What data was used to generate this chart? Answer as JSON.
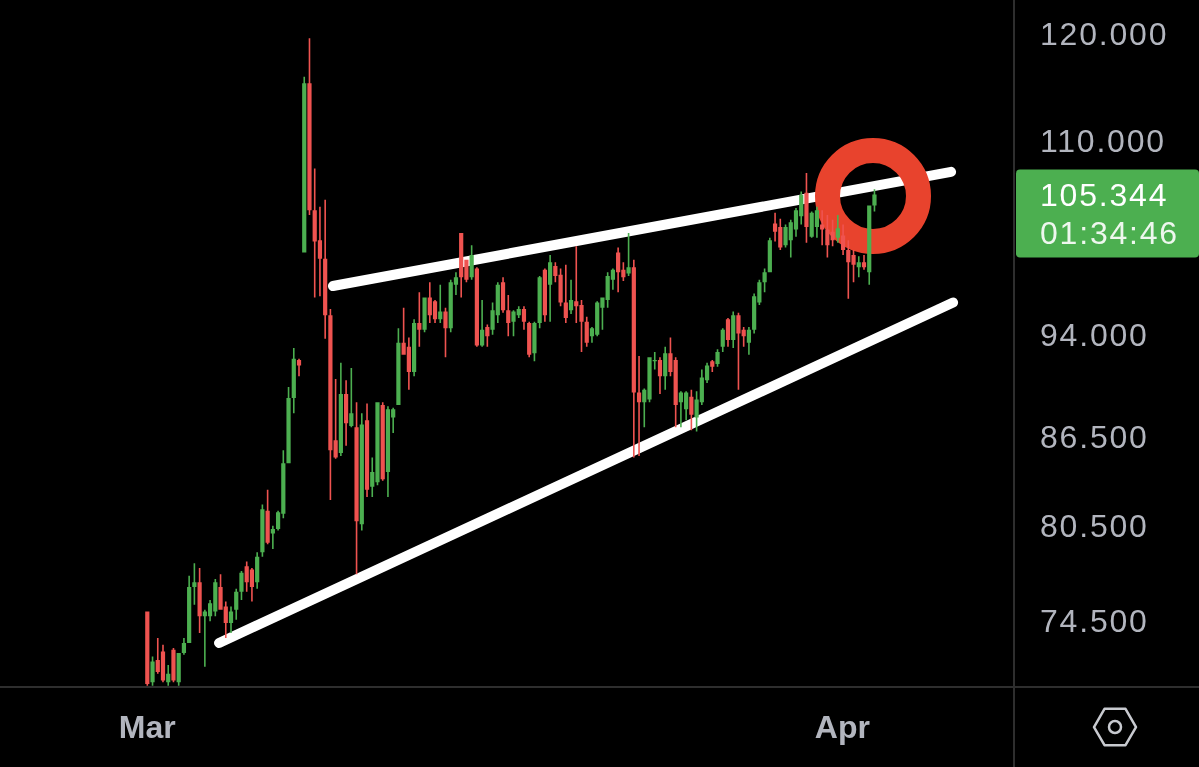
{
  "chart_data": {
    "type": "candlestick",
    "x": [
      "--03-01T00:00",
      "--03-01T05:36",
      "--03-01T11:12",
      "--03-01T16:48",
      "--03-01T22:24",
      "--03-02T04:00",
      "--03-02T09:36",
      "--03-02T15:12",
      "--03-02T20:48",
      "--03-03T02:24",
      "--03-03T08:00",
      "--03-03T13:36",
      "--03-03T19:12",
      "--03-04T00:48",
      "--03-04T06:24",
      "--03-04T12:00",
      "--03-04T17:36",
      "--03-04T23:12",
      "--03-05T04:48",
      "--03-05T10:24",
      "--03-05T16:00",
      "--03-05T21:36",
      "--03-06T03:12",
      "--03-06T08:48",
      "--03-06T14:24",
      "--03-06T20:00",
      "--03-07T01:36",
      "--03-07T07:12",
      "--03-07T12:48",
      "--03-07T18:24",
      "--03-08T00:00",
      "--03-08T05:36",
      "--03-08T11:12",
      "--03-08T16:48",
      "--03-08T22:24",
      "--03-09T04:00",
      "--03-09T09:36",
      "--03-09T15:12",
      "--03-09T20:48",
      "--03-10T02:24",
      "--03-10T08:00",
      "--03-10T13:36",
      "--03-10T19:12",
      "--03-11T00:48",
      "--03-11T06:24",
      "--03-11T12:00",
      "--03-11T17:36",
      "--03-11T23:12",
      "--03-12T04:48",
      "--03-12T10:24",
      "--03-12T16:00",
      "--03-12T21:36",
      "--03-13T03:12",
      "--03-13T08:48",
      "--03-13T14:24",
      "--03-13T20:00",
      "--03-14T01:36",
      "--03-14T07:12",
      "--03-14T12:48",
      "--03-14T18:24",
      "--03-15T00:00",
      "--03-15T05:36",
      "--03-15T11:12",
      "--03-15T16:48",
      "--03-15T22:24",
      "--03-16T04:00",
      "--03-16T09:36",
      "--03-16T15:12",
      "--03-16T20:48",
      "--03-17T02:24",
      "--03-17T08:00",
      "--03-17T13:36",
      "--03-17T19:12",
      "--03-18T00:48",
      "--03-18T06:24",
      "--03-18T12:00",
      "--03-18T17:36",
      "--03-18T23:12",
      "--03-19T04:48",
      "--03-19T10:24",
      "--03-19T16:00",
      "--03-19T21:36",
      "--03-20T03:12",
      "--03-20T08:48",
      "--03-20T14:24",
      "--03-20T20:00",
      "--03-21T01:36",
      "--03-21T07:12",
      "--03-21T12:48",
      "--03-21T18:24",
      "--03-22T00:00",
      "--03-22T05:36",
      "--03-22T11:12",
      "--03-22T16:48",
      "--03-22T22:24",
      "--03-23T04:00",
      "--03-23T09:36",
      "--03-23T15:12",
      "--03-23T20:48",
      "--03-24T02:24",
      "--03-24T08:00",
      "--03-24T13:36",
      "--03-24T19:12",
      "--03-25T00:48",
      "--03-25T06:24",
      "--03-25T12:00",
      "--03-25T17:36",
      "--03-25T23:12",
      "--03-26T04:48",
      "--03-26T10:24",
      "--03-26T16:00",
      "--03-26T21:36",
      "--03-27T03:12",
      "--03-27T08:48",
      "--03-27T14:24",
      "--03-27T20:00",
      "--03-28T01:36",
      "--03-28T07:12",
      "--03-28T12:48",
      "--03-28T18:24",
      "--03-29T00:00",
      "--03-29T05:36",
      "--03-29T11:12",
      "--03-29T16:48",
      "--03-29T22:24",
      "--03-30T04:00",
      "--03-30T09:36",
      "--03-30T15:12",
      "--03-30T20:48",
      "--03-31T02:24",
      "--03-31T08:00",
      "--03-31T13:36",
      "--03-31T19:12",
      "--04-01T00:48",
      "--04-01T06:24",
      "--04-01T12:00",
      "--04-01T17:36",
      "--04-01T23:12",
      "--04-02T04:48",
      "--04-02T10:24"
    ],
    "ohlc": [
      [
        75.1,
        75.1,
        70.7,
        70.8
      ],
      [
        70.9,
        72.4,
        70.7,
        72.1
      ],
      [
        72.2,
        73.5,
        71.4,
        71.5
      ],
      [
        72.7,
        73.1,
        70.9,
        71.0
      ],
      [
        70.9,
        71.9,
        70.7,
        71.4
      ],
      [
        72.8,
        72.9,
        70.9,
        71.0
      ],
      [
        70.9,
        72.6,
        70.7,
        72.6
      ],
      [
        72.6,
        73.5,
        72.5,
        73.2
      ],
      [
        73.2,
        77.3,
        73.2,
        76.6
      ],
      [
        76.6,
        78.1,
        75.5,
        76.9
      ],
      [
        76.9,
        77.8,
        73.8,
        74.8
      ],
      [
        74.8,
        75.2,
        71.8,
        75.1
      ],
      [
        74.8,
        75.8,
        74.5,
        75.6
      ],
      [
        75.1,
        77.1,
        74.8,
        76.9
      ],
      [
        76.6,
        77.4,
        75.2,
        75.2
      ],
      [
        75.4,
        75.7,
        73.5,
        74.4
      ],
      [
        74.4,
        75.4,
        73.8,
        75.1
      ],
      [
        75.2,
        76.5,
        74.6,
        76.3
      ],
      [
        76.3,
        77.6,
        75.8,
        77.5
      ],
      [
        77.9,
        78.2,
        76.3,
        76.9
      ],
      [
        77.7,
        77.8,
        75.7,
        76.6
      ],
      [
        76.9,
        78.8,
        76.5,
        78.5
      ],
      [
        78.8,
        81.9,
        78.5,
        81.6
      ],
      [
        81.5,
        82.9,
        79.3,
        79.4
      ],
      [
        80.0,
        80.5,
        79.0,
        80.3
      ],
      [
        80.3,
        81.5,
        80.2,
        81.4
      ],
      [
        81.3,
        85.6,
        81.0,
        84.7
      ],
      [
        84.7,
        90.1,
        84.7,
        89.3
      ],
      [
        89.3,
        93.0,
        88.2,
        92.2
      ],
      [
        92.1,
        92.2,
        90.9,
        91.7
      ],
      [
        100.5,
        115.9,
        100.5,
        115.3
      ],
      [
        115.3,
        119.6,
        103.6,
        104.0
      ],
      [
        104.0,
        107.6,
        96.9,
        101.4
      ],
      [
        101.5,
        104.3,
        97.0,
        100.0
      ],
      [
        100.0,
        104.9,
        93.7,
        95.5
      ],
      [
        95.5,
        96.0,
        82.2,
        85.6
      ],
      [
        86.3,
        90.7,
        85.0,
        85.1
      ],
      [
        85.4,
        91.9,
        85.2,
        89.6
      ],
      [
        89.6,
        90.6,
        85.9,
        87.5
      ],
      [
        87.3,
        91.5,
        87.2,
        88.2
      ],
      [
        87.2,
        89.0,
        77.4,
        80.8
      ],
      [
        80.6,
        88.2,
        80.2,
        87.4
      ],
      [
        87.7,
        88.9,
        82.4,
        82.9
      ],
      [
        83.1,
        85.1,
        82.4,
        84.1
      ],
      [
        83.4,
        89.0,
        83.2,
        89.0
      ],
      [
        88.8,
        89.0,
        83.5,
        83.6
      ],
      [
        84.1,
        88.7,
        82.4,
        88.5
      ],
      [
        87.9,
        88.6,
        86.8,
        88.5
      ],
      [
        88.8,
        94.5,
        88.8,
        93.4
      ],
      [
        93.4,
        96.1,
        92.5,
        92.5
      ],
      [
        93.1,
        93.8,
        89.9,
        91.2
      ],
      [
        91.2,
        95.2,
        90.9,
        94.9
      ],
      [
        94.9,
        97.3,
        93.1,
        94.4
      ],
      [
        94.4,
        96.9,
        94.2,
        96.9
      ],
      [
        96.9,
        98.1,
        94.9,
        95.5
      ],
      [
        96.6,
        96.7,
        94.9,
        95.2
      ],
      [
        95.2,
        97.9,
        94.9,
        95.8
      ],
      [
        95.8,
        96.1,
        92.3,
        94.5
      ],
      [
        94.5,
        98.3,
        94.2,
        98.1
      ],
      [
        97.9,
        98.9,
        97.1,
        98.5
      ],
      [
        102.1,
        102.1,
        96.9,
        98.5
      ],
      [
        99.9,
        99.9,
        98.1,
        98.3
      ],
      [
        98.5,
        101.1,
        98.3,
        100.3
      ],
      [
        99.2,
        99.3,
        93.1,
        93.2
      ],
      [
        93.2,
        96.7,
        93.1,
        94.4
      ],
      [
        94.6,
        94.8,
        93.1,
        93.9
      ],
      [
        94.4,
        96.5,
        94.0,
        95.9
      ],
      [
        95.5,
        98.1,
        94.9,
        97.9
      ],
      [
        98.1,
        98.5,
        95.7,
        95.9
      ],
      [
        95.9,
        97.1,
        93.9,
        94.9
      ],
      [
        95.0,
        95.9,
        93.9,
        95.8
      ],
      [
        95.5,
        96.2,
        95.3,
        96.0
      ],
      [
        96.0,
        96.2,
        94.4,
        95.0
      ],
      [
        94.9,
        95.0,
        92.3,
        92.5
      ],
      [
        92.6,
        95.0,
        92.0,
        94.9
      ],
      [
        94.9,
        98.6,
        94.5,
        98.5
      ],
      [
        99.1,
        99.2,
        95.0,
        95.5
      ],
      [
        97.9,
        100.3,
        95.0,
        99.7
      ],
      [
        99.4,
        99.7,
        98.1,
        98.6
      ],
      [
        98.7,
        99.2,
        96.2,
        96.5
      ],
      [
        96.5,
        99.5,
        94.9,
        95.3
      ],
      [
        95.9,
        98.3,
        95.6,
        96.7
      ],
      [
        96.6,
        101.0,
        94.9,
        96.2
      ],
      [
        96.3,
        96.7,
        92.7,
        95.0
      ],
      [
        95.0,
        95.4,
        93.1,
        93.4
      ],
      [
        93.9,
        94.6,
        93.4,
        94.5
      ],
      [
        94.0,
        96.6,
        93.9,
        96.5
      ],
      [
        96.1,
        96.9,
        94.4,
        96.9
      ],
      [
        96.7,
        98.9,
        96.1,
        98.6
      ],
      [
        98.3,
        99.2,
        97.5,
        99.1
      ],
      [
        100.5,
        100.9,
        97.3,
        98.9
      ],
      [
        99.1,
        99.7,
        98.2,
        98.5
      ],
      [
        98.8,
        102.1,
        98.6,
        99.3
      ],
      [
        99.3,
        99.9,
        85.1,
        89.7
      ],
      [
        89.7,
        92.4,
        85.2,
        89.0
      ],
      [
        89.0,
        90.0,
        87.2,
        89.9
      ],
      [
        89.2,
        92.3,
        89.0,
        92.3
      ],
      [
        92.0,
        92.7,
        91.4,
        92.1
      ],
      [
        92.1,
        92.3,
        89.6,
        90.9
      ],
      [
        90.9,
        93.1,
        89.9,
        92.6
      ],
      [
        92.6,
        93.8,
        90.9,
        91.2
      ],
      [
        92.1,
        92.3,
        87.2,
        88.8
      ],
      [
        89.0,
        89.8,
        87.2,
        89.7
      ],
      [
        88.5,
        89.8,
        87.7,
        89.7
      ],
      [
        89.4,
        89.9,
        87.0,
        88.1
      ],
      [
        87.9,
        89.8,
        86.9,
        89.2
      ],
      [
        89.0,
        91.4,
        88.8,
        90.8
      ],
      [
        90.6,
        91.9,
        90.4,
        91.7
      ],
      [
        92.0,
        92.1,
        91.2,
        91.6
      ],
      [
        91.8,
        92.9,
        91.6,
        92.7
      ],
      [
        93.1,
        94.5,
        92.7,
        94.4
      ],
      [
        95.2,
        95.3,
        93.1,
        93.6
      ],
      [
        93.6,
        95.8,
        93.0,
        95.5
      ],
      [
        95.5,
        95.7,
        89.9,
        94.1
      ],
      [
        94.4,
        94.6,
        93.1,
        93.9
      ],
      [
        93.4,
        94.6,
        92.5,
        94.4
      ],
      [
        94.4,
        97.2,
        94.1,
        97.0
      ],
      [
        96.5,
        98.3,
        96.3,
        98.1
      ],
      [
        98.1,
        99.2,
        97.3,
        98.9
      ],
      [
        98.9,
        101.7,
        98.9,
        101.5
      ],
      [
        102.9,
        103.8,
        101.4,
        102.2
      ],
      [
        102.6,
        103.3,
        100.7,
        100.9
      ],
      [
        101.1,
        102.8,
        100.9,
        102.6
      ],
      [
        101.5,
        103.2,
        100.1,
        103.0
      ],
      [
        102.4,
        104.2,
        101.8,
        104.0
      ],
      [
        103.5,
        105.6,
        102.8,
        105.3
      ],
      [
        105.5,
        107.2,
        101.3,
        102.6
      ],
      [
        101.8,
        103.9,
        101.7,
        103.8
      ],
      [
        102.6,
        104.3,
        101.7,
        104.0
      ],
      [
        102.8,
        104.0,
        101.1,
        102.4
      ],
      [
        102.4,
        103.6,
        100.1,
        101.1
      ],
      [
        102.2,
        103.2,
        101.0,
        101.5
      ],
      [
        101.7,
        103.6,
        101.3,
        102.5
      ],
      [
        101.9,
        102.8,
        100.3,
        100.7
      ],
      [
        100.7,
        101.5,
        96.8,
        99.7
      ],
      [
        100.3,
        100.7,
        98.1,
        99.5
      ],
      [
        99.3,
        100.2,
        98.5,
        99.7
      ],
      [
        99.7,
        100.3,
        99.1,
        99.3
      ],
      [
        98.9,
        104.4,
        97.9,
        104.4
      ],
      [
        104.4,
        105.8,
        103.9,
        105.344
      ]
    ],
    "colors": [
      "#ef5350",
      "#4caf50",
      "#ef5350",
      "#ef5350",
      "#4caf50",
      "#ef5350",
      "#4caf50",
      "#4caf50",
      "#4caf50",
      "#4caf50",
      "#ef5350",
      "#4caf50",
      "#4caf50",
      "#4caf50",
      "#ef5350",
      "#ef5350",
      "#4caf50",
      "#4caf50",
      "#4caf50",
      "#ef5350",
      "#ef5350",
      "#4caf50",
      "#4caf50",
      "#ef5350",
      "#4caf50",
      "#4caf50",
      "#4caf50",
      "#4caf50",
      "#4caf50",
      "#ef5350",
      "#4caf50",
      "#ef5350",
      "#ef5350",
      "#ef5350",
      "#ef5350",
      "#ef5350",
      "#ef5350",
      "#4caf50",
      "#ef5350",
      "#4caf50",
      "#ef5350",
      "#4caf50",
      "#ef5350",
      "#4caf50",
      "#4caf50",
      "#ef5350",
      "#4caf50",
      "#4caf50",
      "#4caf50",
      "#ef5350",
      "#ef5350",
      "#4caf50",
      "#ef5350",
      "#4caf50",
      "#ef5350",
      "#ef5350",
      "#4caf50",
      "#ef5350",
      "#4caf50",
      "#4caf50",
      "#ef5350",
      "#ef5350",
      "#4caf50",
      "#ef5350",
      "#4caf50",
      "#ef5350",
      "#4caf50",
      "#4caf50",
      "#ef5350",
      "#ef5350",
      "#4caf50",
      "#4caf50",
      "#ef5350",
      "#ef5350",
      "#4caf50",
      "#4caf50",
      "#ef5350",
      "#4caf50",
      "#ef5350",
      "#ef5350",
      "#ef5350",
      "#4caf50",
      "#ef5350",
      "#ef5350",
      "#ef5350",
      "#4caf50",
      "#4caf50",
      "#4caf50",
      "#4caf50",
      "#4caf50",
      "#ef5350",
      "#ef5350",
      "#4caf50",
      "#ef5350",
      "#ef5350",
      "#4caf50",
      "#4caf50",
      "#4caf50",
      "#ef5350",
      "#4caf50",
      "#ef5350",
      "#ef5350",
      "#4caf50",
      "#4caf50",
      "#ef5350",
      "#4caf50",
      "#4caf50",
      "#4caf50",
      "#ef5350",
      "#4caf50",
      "#4caf50",
      "#ef5350",
      "#4caf50",
      "#ef5350",
      "#ef5350",
      "#4caf50",
      "#4caf50",
      "#4caf50",
      "#4caf50",
      "#4caf50",
      "#ef5350",
      "#ef5350",
      "#4caf50",
      "#4caf50",
      "#4caf50",
      "#4caf50",
      "#ef5350",
      "#4caf50",
      "#4caf50",
      "#ef5350",
      "#ef5350",
      "#ef5350",
      "#4caf50",
      "#ef5350",
      "#ef5350",
      "#ef5350",
      "#4caf50",
      "#ef5350",
      "#4caf50",
      "#4caf50"
    ],
    "series": [
      {
        "type": "line",
        "color": "#ffffff",
        "x": [
          "--03-09T06:43",
          "--04-05T20:24"
        ],
        "values": [
          97.8,
          107.3
        ]
      },
      {
        "type": "line",
        "color": "#ffffff",
        "x": [
          "--03-04T04:48",
          "--04-05T22:34"
        ],
        "values": [
          73.2,
          96.5
        ]
      }
    ],
    "xlim": [
      "--02-22T10:19",
      "--04-16T21:48"
    ],
    "xticks": [
      {
        "value": "--03-01",
        "label": "Mar"
      },
      {
        "value": "--04-01",
        "label": "Apr"
      }
    ],
    "ylim": [
      70.63,
      123.36
    ],
    "log": true,
    "yticks": [
      {
        "value": 74.5,
        "label": "74.500"
      },
      {
        "value": 80.5,
        "label": "80.500"
      },
      {
        "value": 86.5,
        "label": "86.500"
      },
      {
        "value": 94,
        "label": "94.000"
      },
      {
        "value": 110,
        "label": "110.000"
      },
      {
        "value": 120,
        "label": "120.000"
      }
    ],
    "annotations": [
      "105.344",
      "01:34:46"
    ]
  }
}
